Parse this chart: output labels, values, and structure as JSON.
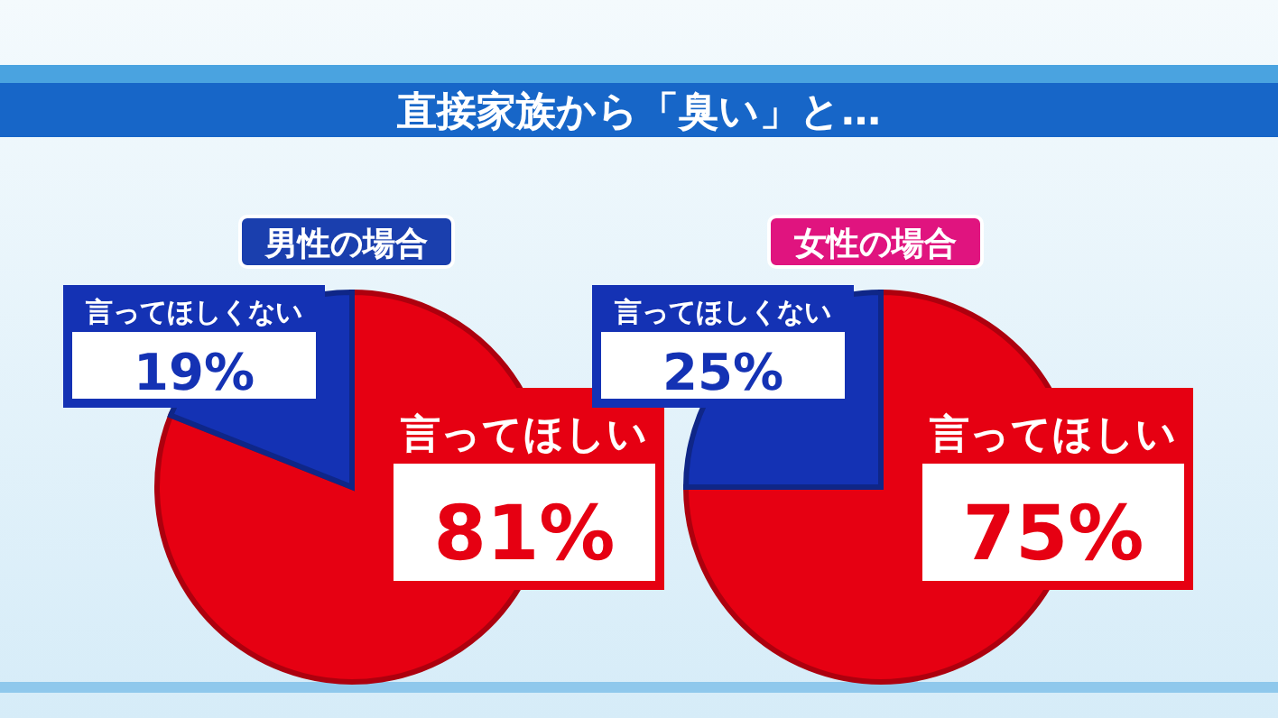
{
  "chart_data": [
    {
      "type": "other",
      "title": "直接家族から「臭い」と…"
    },
    {
      "type": "pie",
      "title": "男性の場合",
      "categories": [
        "言ってほしい",
        "言ってほしくない"
      ],
      "values": [
        81,
        19
      ],
      "value_labels": [
        "81%",
        "19%"
      ],
      "colors": [
        "#e60012",
        "#1432b4"
      ]
    },
    {
      "type": "pie",
      "title": "女性の場合",
      "categories": [
        "言ってほしい",
        "言ってほしくない"
      ],
      "values": [
        75,
        25
      ],
      "value_labels": [
        "75%",
        "25%"
      ],
      "colors": [
        "#e60012",
        "#1432b4"
      ]
    }
  ]
}
